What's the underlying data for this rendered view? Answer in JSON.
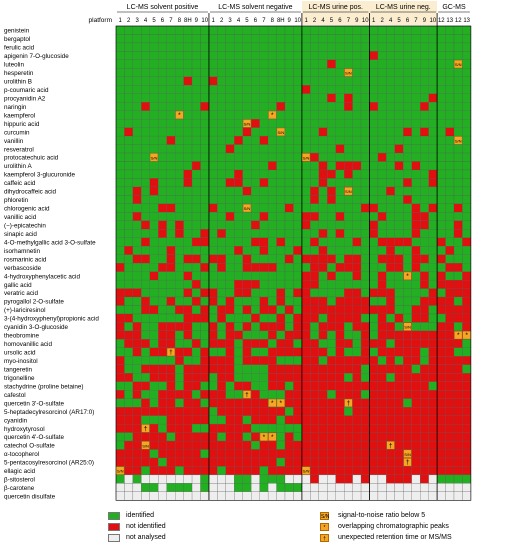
{
  "chart_data": {
    "type": "heatmap",
    "platform_label": "platform",
    "groups": [
      {
        "name": "LC-MS solvent positive",
        "columns": [
          "1",
          "2",
          "3",
          "4",
          "5",
          "6",
          "7",
          "8",
          "8H",
          "9",
          "10"
        ],
        "shade": false
      },
      {
        "name": "LC-MS solvent negative",
        "columns": [
          "1",
          "2",
          "3",
          "4",
          "5",
          "6",
          "7",
          "8",
          "8H",
          "9",
          "10"
        ],
        "shade": false
      },
      {
        "name": "LC-MS urine pos.",
        "columns": [
          "1",
          "2",
          "4",
          "5",
          "6",
          "7",
          "9",
          "10"
        ],
        "shade": true
      },
      {
        "name": "LC-MS urine neg.",
        "columns": [
          "1",
          "2",
          "4",
          "5",
          "6",
          "7",
          "9",
          "10"
        ],
        "shade": true
      },
      {
        "name": "GC-MS",
        "columns": [
          "12",
          "13",
          "12",
          "13"
        ],
        "shade": false
      }
    ],
    "rows": [
      "genistein",
      "bergaptol",
      "ferulic acid",
      "apigenin 7-O-glucoside",
      "luteolin",
      "hesperetin",
      "urolithin B",
      "p-coumaric acid",
      "procyanidin A2",
      "naringin",
      "kaempferol",
      "hippuric acid",
      "curcumin",
      "vanillin",
      "resveratrol",
      "protocatechuic acid",
      "urolithin A",
      "kaempferol 3-glucuronide",
      "caffeic acid",
      "dihydrocaffeic acid",
      "phloretin",
      "chlorogenic acid",
      "vanillic acid",
      "(−)-epicatechin",
      "sinapic acid",
      "4-O-methylgallic acid 3-O-sulfate",
      "isorhamnetin",
      "rosmarinic acid",
      "verbascoside",
      "4-hydroxyphenylacetic acid",
      "gallic acid",
      "veratric acid",
      "pyrogallol 2-O-sulfate",
      "(+)-lariciresinol",
      "3-(4-hydroxyphenyl)propionic acid",
      "cyanidin 3-O-glucoside",
      "theobromine",
      "homovanillic acid",
      "ursolic acid",
      "myo-inositol",
      "tangeretin",
      "trigonelline",
      "stachydrine (proline betaine)",
      "cafestol",
      "quercetin 3'-O-sulfate",
      "5-heptadecylresorcinol (AR17:0)",
      "cyanidin",
      "hydroxytyrosol",
      "quercetin 4'-O-sulfate",
      "catechol O-sulfate",
      "α-tocopherol",
      "5-pentacosylresorcinol (AR25:0)",
      "ellagic acid",
      "β-sitosterol",
      "β-carotene",
      "quercetin disulfate"
    ],
    "legend": [
      {
        "key": "identified",
        "label": "identified",
        "color": "#22b022"
      },
      {
        "key": "not_identified",
        "label": "not identified",
        "color": "#e01010"
      },
      {
        "key": "not_analysed",
        "label": "not analysed",
        "color": "#eeeeee"
      },
      {
        "key": "sn",
        "label": "signal-to-noise ratio below 5",
        "mark": "S/N",
        "color": "#f5a623"
      },
      {
        "key": "overlap",
        "label": "overlapping chromatographic peaks",
        "mark": "*",
        "color": "#f5a623"
      },
      {
        "key": "unexpected",
        "label": "unexpected retention time or MS/MS",
        "mark": "†",
        "color": "#f5a623"
      }
    ],
    "colors": {
      "identified": "#22b022",
      "not_identified": "#e01010",
      "not_analysed": "#eeeeee",
      "flag": "#f5a623",
      "urine_header": "#fbeed0"
    },
    "flags": [
      {
        "row": "hesperetin",
        "group": 2,
        "col": 5,
        "mark": "S/N"
      },
      {
        "row": "luteolin",
        "group": 4,
        "col": 2,
        "mark": "S/N"
      },
      {
        "row": "kaempferol",
        "group": 0,
        "col": 7,
        "mark": "*"
      },
      {
        "row": "kaempferol",
        "group": 1,
        "col": 7,
        "mark": "*"
      },
      {
        "row": "hippuric acid",
        "group": 1,
        "col": 4,
        "mark": "S/N"
      },
      {
        "row": "curcumin",
        "group": 1,
        "col": 8,
        "mark": "S/N"
      },
      {
        "row": "vanillin",
        "group": 4,
        "col": 2,
        "mark": "S/N"
      },
      {
        "row": "protocatechuic acid",
        "group": 0,
        "col": 4,
        "mark": "S/N"
      },
      {
        "row": "protocatechuic acid",
        "group": 2,
        "col": 0,
        "mark": "S/N"
      },
      {
        "row": "dihydrocaffeic acid",
        "group": 2,
        "col": 5,
        "mark": "S/N"
      },
      {
        "row": "chlorogenic acid",
        "group": 1,
        "col": 4,
        "mark": "S/N"
      },
      {
        "row": "4-hydroxyphenylacetic acid",
        "group": 3,
        "col": 4,
        "mark": "*"
      },
      {
        "row": "cyanidin 3-O-glucoside",
        "group": 3,
        "col": 4,
        "mark": "S/N"
      },
      {
        "row": "theobromine",
        "group": 4,
        "col": 2,
        "mark": "*"
      },
      {
        "row": "theobromine",
        "group": 4,
        "col": 3,
        "mark": "*"
      },
      {
        "row": "ursolic acid",
        "group": 0,
        "col": 6,
        "mark": "†"
      },
      {
        "row": "quercetin 3'-O-sulfate",
        "group": 1,
        "col": 7,
        "mark": "*"
      },
      {
        "row": "quercetin 3'-O-sulfate",
        "group": 1,
        "col": 8,
        "mark": "*"
      },
      {
        "row": "quercetin 3'-O-sulfate",
        "group": 2,
        "col": 5,
        "mark": "†"
      },
      {
        "row": "cafestol",
        "group": 1,
        "col": 4,
        "mark": "†"
      },
      {
        "row": "hydroxytyrosol",
        "group": 0,
        "col": 3,
        "mark": "†"
      },
      {
        "row": "quercetin 4'-O-sulfate",
        "group": 1,
        "col": 6,
        "mark": "*"
      },
      {
        "row": "quercetin 4'-O-sulfate",
        "group": 1,
        "col": 7,
        "mark": "*"
      },
      {
        "row": "catechol O-sulfate",
        "group": 0,
        "col": 3,
        "mark": "S/N"
      },
      {
        "row": "catechol O-sulfate",
        "group": 3,
        "col": 2,
        "mark": "†"
      },
      {
        "row": "α-tocopherol",
        "group": 3,
        "col": 4,
        "mark": "S/N"
      },
      {
        "row": "5-pentacosylresorcinol (AR25:0)",
        "group": 3,
        "col": 4,
        "mark": "†"
      },
      {
        "row": "ellagic acid",
        "group": 0,
        "col": 0,
        "mark": "S/N"
      },
      {
        "row": "ellagic acid",
        "group": 2,
        "col": 0,
        "mark": "S/N"
      }
    ]
  }
}
